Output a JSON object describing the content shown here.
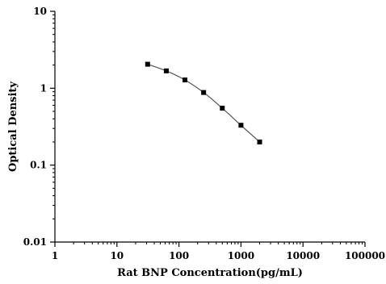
{
  "chart_data": {
    "type": "scatter",
    "xlabel": "Rat BNP Concentration(pg/mL)",
    "ylabel": "Optical Density",
    "x_scale": "log",
    "y_scale": "log",
    "xlim": [
      1,
      100000
    ],
    "ylim": [
      0.01,
      10
    ],
    "x_ticks": [
      1,
      10,
      100,
      1000,
      10000,
      100000
    ],
    "x_tick_labels": [
      "1",
      "10",
      "100",
      "1000",
      "10000",
      "100000"
    ],
    "y_ticks": [
      0.01,
      0.1,
      1,
      10
    ],
    "y_tick_labels": [
      "0.01",
      "0.1",
      "1",
      "10"
    ],
    "series": [
      {
        "x": [
          31.25,
          62.5,
          125,
          250,
          500,
          1000,
          2000
        ],
        "y": [
          2.05,
          1.68,
          1.28,
          0.88,
          0.55,
          0.33,
          0.2
        ],
        "marker": "square",
        "line": "smooth",
        "color": "#000000",
        "line_color": "#555555"
      }
    ],
    "grid": false
  }
}
